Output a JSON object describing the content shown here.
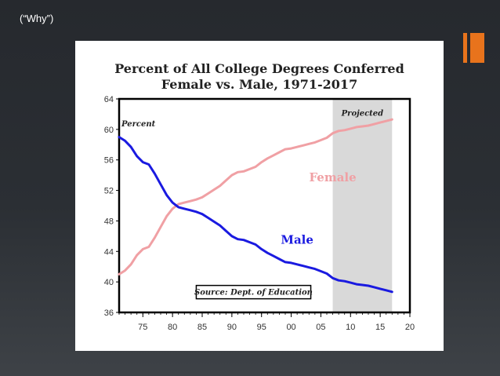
{
  "slide": {
    "caption": "(“Why”)",
    "accent_color": "#e8731c"
  },
  "chart_data": {
    "type": "line",
    "title": "Percent of All College Degrees Conferred",
    "subtitle": "Female vs. Male, 1971-2017",
    "xlabel": "",
    "ylabel": "",
    "unit_annotation": "Percent",
    "projected_label": "Projected",
    "projected_range": [
      2007,
      2017
    ],
    "source": "Source: Dept. of Education",
    "xlim": [
      1971,
      2020
    ],
    "ylim": [
      36,
      64
    ],
    "x_ticks": [
      1975,
      1980,
      1985,
      1990,
      1995,
      2000,
      2005,
      2010,
      2015,
      2020
    ],
    "x_tick_labels": [
      "75",
      "80",
      "85",
      "90",
      "95",
      "00",
      "05",
      "10",
      "15",
      "20"
    ],
    "y_ticks": [
      36,
      40,
      44,
      48,
      52,
      56,
      60,
      64
    ],
    "y_tick_labels": [
      "36",
      "40",
      "44",
      "48",
      "52",
      "56",
      "60",
      "64"
    ],
    "grid": false,
    "x": [
      1971,
      1972,
      1973,
      1974,
      1975,
      1976,
      1977,
      1978,
      1979,
      1980,
      1981,
      1982,
      1983,
      1984,
      1985,
      1986,
      1987,
      1988,
      1989,
      1990,
      1991,
      1992,
      1993,
      1994,
      1995,
      1996,
      1997,
      1998,
      1999,
      2000,
      2001,
      2002,
      2003,
      2004,
      2005,
      2006,
      2007,
      2008,
      2009,
      2010,
      2011,
      2012,
      2013,
      2014,
      2015,
      2016,
      2017
    ],
    "series": [
      {
        "name": "Female",
        "color": "#f0a0a4",
        "values": [
          41.0,
          41.5,
          42.3,
          43.5,
          44.3,
          44.6,
          45.8,
          47.2,
          48.6,
          49.6,
          50.2,
          50.4,
          50.6,
          50.8,
          51.1,
          51.6,
          52.1,
          52.6,
          53.3,
          54.0,
          54.4,
          54.5,
          54.8,
          55.1,
          55.7,
          56.2,
          56.6,
          57.0,
          57.4,
          57.5,
          57.7,
          57.9,
          58.1,
          58.3,
          58.6,
          58.9,
          59.5,
          59.8,
          59.9,
          60.1,
          60.3,
          60.4,
          60.5,
          60.7,
          60.9,
          61.1,
          61.3
        ]
      },
      {
        "name": "Male",
        "color": "#1a1ae0",
        "values": [
          59.0,
          58.5,
          57.7,
          56.5,
          55.7,
          55.4,
          54.2,
          52.8,
          51.4,
          50.4,
          49.8,
          49.6,
          49.4,
          49.2,
          48.9,
          48.4,
          47.9,
          47.4,
          46.7,
          46.0,
          45.6,
          45.5,
          45.2,
          44.9,
          44.3,
          43.8,
          43.4,
          43.0,
          42.6,
          42.5,
          42.3,
          42.1,
          41.9,
          41.7,
          41.4,
          41.1,
          40.5,
          40.2,
          40.1,
          39.9,
          39.7,
          39.6,
          39.5,
          39.3,
          39.1,
          38.9,
          38.7
        ]
      }
    ]
  }
}
